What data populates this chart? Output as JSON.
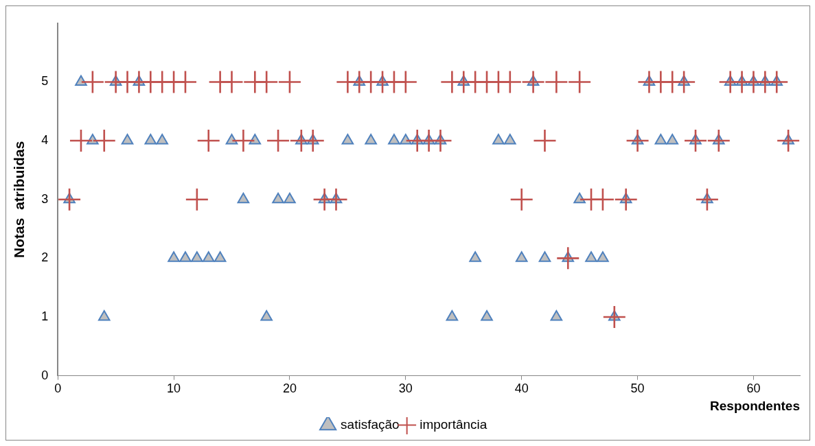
{
  "chart_data": {
    "type": "scatter",
    "xlabel": "Respondentes",
    "ylabel": "Notas  atribuidas",
    "x": [
      1,
      2,
      3,
      4,
      5,
      6,
      7,
      8,
      9,
      10,
      11,
      12,
      13,
      14,
      15,
      16,
      17,
      18,
      19,
      20,
      21,
      22,
      23,
      24,
      25,
      26,
      27,
      28,
      29,
      30,
      31,
      32,
      33,
      34,
      35,
      36,
      37,
      38,
      39,
      40,
      41,
      42,
      43,
      44,
      45,
      46,
      47,
      48,
      49,
      50,
      51,
      52,
      53,
      54,
      55,
      56,
      57,
      58,
      59,
      60,
      61,
      62,
      63
    ],
    "series": [
      {
        "name": "satisfação",
        "color": "#4f81bd",
        "marker": "triangle",
        "values": [
          3,
          5,
          4,
          1,
          5,
          4,
          5,
          4,
          4,
          2,
          2,
          2,
          2,
          2,
          4,
          3,
          4,
          1,
          3,
          3,
          4,
          4,
          3,
          3,
          4,
          5,
          4,
          5,
          4,
          4,
          4,
          4,
          4,
          1,
          5,
          2,
          1,
          4,
          4,
          2,
          5,
          2,
          1,
          2,
          3,
          2,
          2,
          1,
          3,
          4,
          5,
          4,
          4,
          5,
          4,
          3,
          4,
          5,
          5,
          5,
          5,
          5,
          4
        ]
      },
      {
        "name": "importância",
        "color": "#c0504d",
        "marker": "cross",
        "values": [
          3,
          4,
          5,
          4,
          5,
          5,
          5,
          5,
          5,
          5,
          5,
          3,
          4,
          5,
          5,
          4,
          5,
          5,
          4,
          5,
          4,
          4,
          3,
          3,
          5,
          5,
          5,
          5,
          5,
          5,
          4,
          4,
          4,
          5,
          5,
          5,
          5,
          5,
          5,
          3,
          5,
          4,
          5,
          2,
          5,
          3,
          3,
          1,
          3,
          4,
          5,
          5,
          5,
          5,
          4,
          3,
          4,
          5,
          5,
          5,
          5,
          5,
          4
        ]
      }
    ],
    "xlim": [
      0,
      64
    ],
    "xticks": [
      0,
      10,
      20,
      30,
      40,
      50,
      60
    ],
    "ylim": [
      0,
      6
    ],
    "yticks": [
      0,
      1,
      2,
      3,
      4,
      5
    ],
    "grid": false,
    "legend": "bottom"
  }
}
